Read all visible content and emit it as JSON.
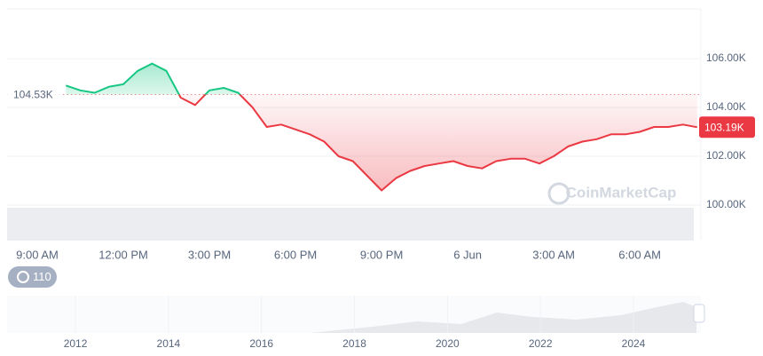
{
  "chart_data": {
    "type": "line",
    "categories": [
      "9:00 AM",
      null,
      null,
      null,
      null,
      null,
      "12:00 PM",
      null,
      null,
      null,
      null,
      null,
      "3:00 PM",
      null,
      null,
      null,
      null,
      null,
      "6:00 PM",
      null,
      null,
      null,
      null,
      null,
      "9:00 PM",
      null,
      null,
      null,
      null,
      null,
      "6 Jun",
      null,
      null,
      null,
      null,
      null,
      "3:00 AM",
      null,
      null,
      null,
      null,
      null,
      "6:00 AM",
      null,
      null,
      null,
      null
    ],
    "values": [
      null,
      null,
      104.9,
      104.7,
      104.6,
      104.85,
      104.95,
      105.5,
      105.8,
      105.5,
      104.4,
      104.1,
      104.7,
      104.8,
      104.6,
      104.0,
      103.2,
      103.3,
      103.1,
      102.9,
      102.6,
      102.0,
      101.8,
      101.2,
      100.6,
      101.1,
      101.4,
      101.6,
      101.7,
      101.8,
      101.6,
      101.5,
      101.8,
      101.9,
      101.9,
      101.7,
      102.0,
      102.4,
      102.6,
      102.7,
      102.9,
      102.9,
      103.0,
      103.2,
      103.2,
      103.3,
      103.19
    ],
    "up_color": "#16c784",
    "down_color": "#ea3943",
    "ylim": [
      98.58,
      108.04
    ],
    "yticks": [
      {
        "value": 100,
        "label": "100.00K"
      },
      {
        "value": 102,
        "label": "102.00K"
      },
      {
        "value": 104,
        "label": "104.00K"
      },
      {
        "value": 106,
        "label": "106.00K"
      }
    ],
    "grid": true,
    "baseline": {
      "value": 104.53,
      "label": "104.53K"
    },
    "current_price": {
      "value": 103.19,
      "label": "103.19K"
    },
    "watermark": "CoinMarketCap",
    "badge": "110",
    "navigator": {
      "xlim": [
        2010.53,
        2025.45
      ],
      "xticks": [
        2012,
        2014,
        2016,
        2018,
        2020,
        2022,
        2024
      ]
    }
  }
}
